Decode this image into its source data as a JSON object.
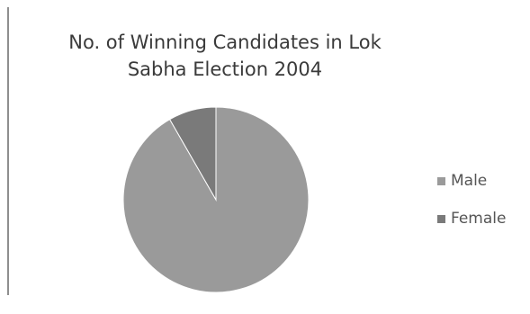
{
  "chart_data": {
    "type": "pie",
    "title": "No. of Winning Candidates in Lok Sabha Election 2004",
    "title_lines": [
      "No. of Winning Candidates in Lok",
      "Sabha Election 2004"
    ],
    "categories": [
      "Male",
      "Female"
    ],
    "values": [
      497,
      45
    ],
    "colors": [
      "#9a9a9a",
      "#7a7a7a"
    ],
    "legend_position": "right",
    "start_angle_deg": 0,
    "direction": "clockwise"
  }
}
